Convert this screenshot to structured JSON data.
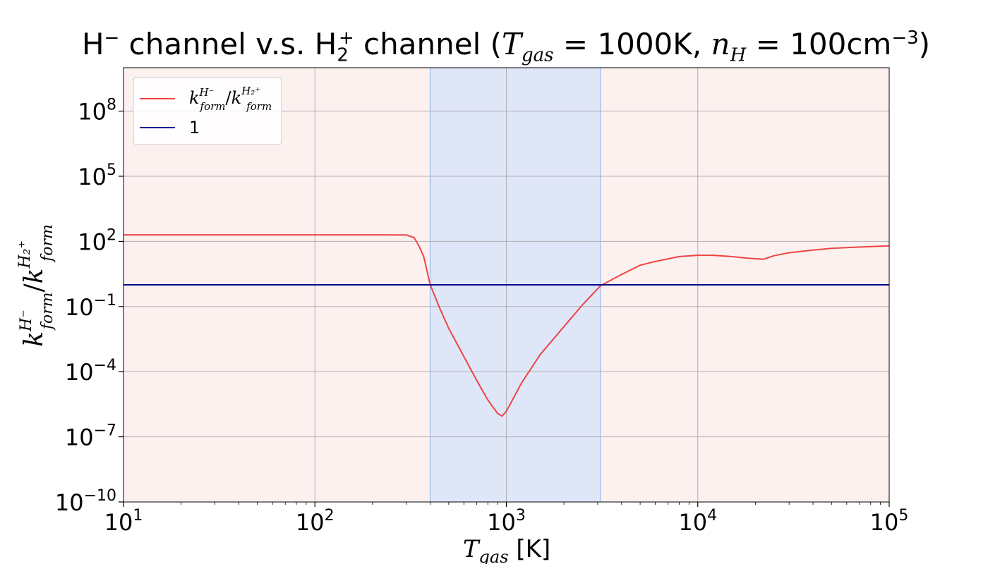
{
  "chart_data": {
    "type": "line",
    "title": {
      "lead": "H",
      "lead_sup": "−",
      "mid": " channel v.s. H",
      "mid_sub": "2",
      "mid_sup": "+",
      "tail": " channel (",
      "T_symbol": "T",
      "T_sub": "gas",
      "T_value": " = 1000K, ",
      "n_symbol": "n",
      "n_sub": "H",
      "n_value": " = 100cm",
      "n_exp": "−3",
      "close": ")"
    },
    "xlabel": {
      "symbol": "T",
      "sub": "gas",
      "unit": " [K]"
    },
    "ylabel": {
      "text": "k",
      "num_sup": "H⁻",
      "den_sup": "H₂⁺",
      "sub": "form"
    },
    "x_scale": "log",
    "y_scale": "log",
    "xlim": [
      10,
      100000
    ],
    "ylim": [
      1e-10,
      10000000000.0
    ],
    "x_ticks": [
      {
        "value": 10,
        "base": "10",
        "exp": "1"
      },
      {
        "value": 100,
        "base": "10",
        "exp": "2"
      },
      {
        "value": 1000,
        "base": "10",
        "exp": "3"
      },
      {
        "value": 10000,
        "base": "10",
        "exp": "4"
      },
      {
        "value": 100000,
        "base": "10",
        "exp": "5"
      }
    ],
    "y_ticks": [
      {
        "value": 1e-10,
        "base": "10",
        "exp": "−10"
      },
      {
        "value": 1e-07,
        "base": "10",
        "exp": "−7"
      },
      {
        "value": 0.0001,
        "base": "10",
        "exp": "−4"
      },
      {
        "value": 0.1,
        "base": "10",
        "exp": "−1"
      },
      {
        "value": 100,
        "base": "10",
        "exp": "2"
      },
      {
        "value": 100000,
        "base": "10",
        "exp": "5"
      },
      {
        "value": 100000000,
        "base": "10",
        "exp": "8"
      }
    ],
    "grid": true,
    "legend": {
      "placement": "top-left",
      "entries": [
        {
          "label_text": "k",
          "label_num_sup": "H⁻",
          "label_den_sup": "H₂⁺",
          "label_sub": "form",
          "color": "#ee4444"
        },
        {
          "label": "1",
          "color": "#00008b"
        }
      ]
    },
    "shaded_regions": [
      {
        "x_start": 10,
        "x_end": 400,
        "color": "#fdf1f0"
      },
      {
        "x_start": 400,
        "x_end": 3100,
        "color": "#dfe6f8"
      },
      {
        "x_start": 3100,
        "x_end": 100000,
        "color": "#fdf1f0"
      }
    ],
    "series": [
      {
        "color": "#ee4444",
        "points": [
          [
            10,
            200
          ],
          [
            50,
            200
          ],
          [
            100,
            200
          ],
          [
            200,
            200
          ],
          [
            300,
            198
          ],
          [
            330,
            150
          ],
          [
            350,
            60
          ],
          [
            370,
            20
          ],
          [
            400,
            1
          ],
          [
            450,
            0.08
          ],
          [
            500,
            0.01
          ],
          [
            600,
            0.0005
          ],
          [
            700,
            4e-05
          ],
          [
            800,
            5e-06
          ],
          [
            900,
            1.2e-06
          ],
          [
            950,
            9e-07
          ],
          [
            1000,
            1.5e-06
          ],
          [
            1200,
            3e-05
          ],
          [
            1500,
            0.0006
          ],
          [
            2000,
            0.012
          ],
          [
            2500,
            0.12
          ],
          [
            3100,
            0.9
          ],
          [
            4000,
            3
          ],
          [
            5000,
            8
          ],
          [
            6000,
            12
          ],
          [
            8000,
            20
          ],
          [
            10000,
            23
          ],
          [
            12000,
            23
          ],
          [
            15000,
            20
          ],
          [
            18000,
            17
          ],
          [
            22000,
            15
          ],
          [
            25000,
            22
          ],
          [
            30000,
            30
          ],
          [
            40000,
            40
          ],
          [
            50000,
            48
          ],
          [
            70000,
            55
          ],
          [
            100000,
            62
          ]
        ]
      },
      {
        "color": "#00008b",
        "points": [
          [
            10,
            1
          ],
          [
            100000,
            1
          ]
        ]
      }
    ]
  }
}
